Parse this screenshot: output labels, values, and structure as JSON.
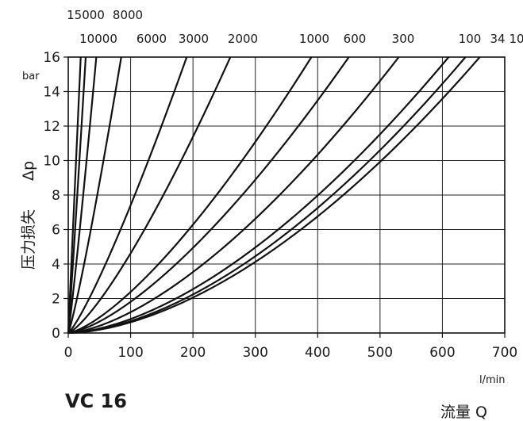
{
  "chart_data": {
    "type": "line",
    "title": "VC 16",
    "xlabel": "流量 Q",
    "xunit": "l/min",
    "ylabel_cjk": "压力损失",
    "ylabel_symbol": "Δp",
    "yunit": "bar",
    "xlim": [
      0,
      700
    ],
    "ylim": [
      0,
      16
    ],
    "x_ticks": [
      "0",
      "100",
      "200",
      "300",
      "400",
      "500",
      "600",
      "700"
    ],
    "y_ticks": [
      "0",
      "2",
      "4",
      "6",
      "8",
      "10",
      "12",
      "14",
      "16"
    ],
    "top_labels_row1": [
      "15000",
      "8000"
    ],
    "top_labels_row2": [
      "10000",
      "6000",
      "3000",
      "2000",
      "1000",
      "600",
      "300",
      "100",
      "34",
      "10"
    ],
    "grid": true,
    "series": [
      {
        "x": [
          0,
          20
        ],
        "y": [
          0,
          16
        ],
        "curve": 1.0
      },
      {
        "x": [
          0,
          28
        ],
        "y": [
          0,
          16
        ],
        "curve": 1.05
      },
      {
        "x": [
          0,
          45
        ],
        "y": [
          0,
          16
        ],
        "curve": 1.1
      },
      {
        "x": [
          0,
          85
        ],
        "y": [
          0,
          16
        ],
        "curve": 1.15
      },
      {
        "x": [
          0,
          190
        ],
        "y": [
          0,
          16
        ],
        "curve": 1.2
      },
      {
        "x": [
          0,
          260
        ],
        "y": [
          0,
          16
        ],
        "curve": 1.3
      },
      {
        "x": [
          0,
          390
        ],
        "y": [
          0,
          16
        ],
        "curve": 1.4
      },
      {
        "x": [
          0,
          450
        ],
        "y": [
          0,
          16
        ],
        "curve": 1.45
      },
      {
        "x": [
          0,
          530
        ],
        "y": [
          0,
          16
        ],
        "curve": 1.55
      },
      {
        "x": [
          0,
          610
        ],
        "y": [
          0,
          16
        ],
        "curve": 1.65
      },
      {
        "x": [
          0,
          637
        ],
        "y": [
          0,
          16
        ],
        "curve": 1.7
      },
      {
        "x": [
          0,
          660
        ],
        "y": [
          0,
          16
        ],
        "curve": 1.72
      }
    ]
  }
}
